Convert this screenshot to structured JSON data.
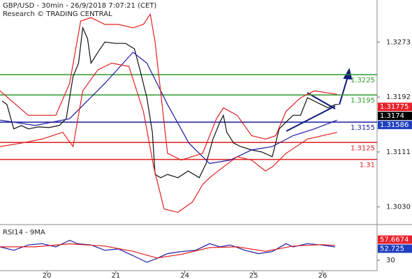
{
  "header": {
    "title": "GBP/USD - 30min - 26/9/2018 7:07:21 (CET)",
    "source": "Research © TRADING CENTRAL"
  },
  "chart_data": [
    {
      "type": "line",
      "xlim": [
        -0.68,
        4.79
      ],
      "ylim": [
        1.3006,
        1.3335
      ],
      "yticks": [
        1.3273,
        1.3192,
        1.3111,
        {
          "value": 1.303,
          "label": "1.3030"
        }
      ],
      "levels": [
        {
          "value": 1.3225,
          "color": "#2e9a2e"
        },
        {
          "value": 1.3195,
          "color": "#2e9a2e"
        },
        {
          "value": 1.3155,
          "color": "#1a1aa6"
        },
        {
          "value": 1.3125,
          "color": "#e02020"
        },
        {
          "value": 1.31,
          "color": "#e02020"
        }
      ],
      "price_labels": [
        {
          "value": 1.31775,
          "color": "#e8202a"
        },
        {
          "value": 1.3174,
          "color": "#000000"
        },
        {
          "value": 1.31586,
          "color": "#1f3fbf"
        }
      ],
      "series": [
        {
          "color": "#111111",
          "x": [
            -0.65,
            -0.58,
            -0.48,
            -0.37,
            -0.27,
            -0.12,
            0.03,
            0.18,
            0.28,
            0.33,
            0.38,
            0.46,
            0.52,
            0.59,
            0.64,
            0.74,
            0.84,
            0.99,
            1.14,
            1.27,
            1.35,
            1.45,
            1.53,
            1.57,
            1.65,
            1.75,
            1.9,
            2.05,
            2.21,
            2.31,
            2.41,
            2.51,
            2.56,
            2.61,
            2.71,
            2.81,
            2.97,
            3.12,
            3.27,
            3.37,
            3.47,
            3.57,
            3.68,
            3.78,
            3.88,
            3.98,
            4.08,
            4.18,
            4.23
          ],
          "values": [
            1.3186,
            1.3181,
            1.3145,
            1.315,
            1.3145,
            1.3148,
            1.3147,
            1.315,
            1.316,
            1.3191,
            1.3222,
            1.3242,
            1.3294,
            1.3278,
            1.3242,
            1.3258,
            1.3273,
            1.3271,
            1.3271,
            1.3263,
            1.3232,
            1.3191,
            1.314,
            1.3078,
            1.3073,
            1.3078,
            1.3073,
            1.3083,
            1.3073,
            1.3094,
            1.313,
            1.3155,
            1.3165,
            1.314,
            1.3124,
            1.3119,
            1.3114,
            1.3111,
            1.3104,
            1.3145,
            1.3155,
            1.3165,
            1.3165,
            1.3191,
            1.3186,
            1.3181,
            1.3176,
            1.3181,
            1.3181
          ]
        },
        {
          "color": "#1a1aa6",
          "x": [
            -0.68,
            -0.17,
            0.33,
            0.84,
            1.25,
            1.45,
            1.75,
            2.06,
            2.36,
            2.66,
            2.97,
            3.27,
            3.57,
            3.88,
            4.21
          ],
          "values": [
            1.3158,
            1.315,
            1.316,
            1.3212,
            1.3258,
            1.3242,
            1.3181,
            1.3124,
            1.3094,
            1.3099,
            1.3114,
            1.3119,
            1.3135,
            1.3145,
            1.3158
          ]
        },
        {
          "color": "#e02020",
          "x": [
            -0.68,
            -0.27,
            0.13,
            0.33,
            0.49,
            0.64,
            0.84,
            1.04,
            1.25,
            1.4,
            1.5,
            1.57,
            1.75,
            1.95,
            2.26,
            2.46,
            2.56,
            2.76,
            2.97,
            3.17,
            3.32,
            3.47,
            3.68,
            3.88,
            4.21
          ],
          "values": [
            1.3201,
            1.3165,
            1.3165,
            1.3212,
            1.3304,
            1.3309,
            1.3299,
            1.3299,
            1.3294,
            1.3299,
            1.3314,
            1.3273,
            1.3109,
            1.3099,
            1.3109,
            1.316,
            1.3176,
            1.3165,
            1.3135,
            1.313,
            1.3135,
            1.3171,
            1.3191,
            1.3201,
            1.3196
          ]
        },
        {
          "color": "#e02020",
          "x": [
            -0.68,
            -0.37,
            -0.07,
            0.23,
            0.38,
            0.52,
            0.74,
            0.94,
            1.19,
            1.4,
            1.55,
            1.7,
            1.9,
            2.11,
            2.26,
            2.36,
            2.56,
            2.76,
            2.97,
            3.17,
            3.27,
            3.47,
            3.78,
            4.21
          ],
          "values": [
            1.3119,
            1.3124,
            1.313,
            1.314,
            1.3119,
            1.3201,
            1.3232,
            1.3242,
            1.3237,
            1.3171,
            1.3089,
            1.3027,
            1.3022,
            1.3037,
            1.3063,
            1.3073,
            1.3089,
            1.3104,
            1.3099,
            1.3083,
            1.3089,
            1.3109,
            1.313,
            1.314
          ]
        }
      ]
    },
    {
      "type": "line",
      "title": "RSI14 - 9MA",
      "xlim": [
        -0.68,
        4.79
      ],
      "xticks": [
        {
          "value": 0,
          "label": "20"
        },
        {
          "value": 1,
          "label": "21"
        },
        {
          "value": 2,
          "label": "24"
        },
        {
          "value": 3,
          "label": "25"
        },
        {
          "value": 4,
          "label": "26"
        }
      ],
      "ylim": [
        18,
        75
      ],
      "yticks": [
        30
      ],
      "price_labels": [
        {
          "value": 57.6674,
          "color": "#e8202a"
        },
        {
          "value": 52.725,
          "color": "#1f3fbf"
        }
      ],
      "series": [
        {
          "color": "#1a1aa6",
          "x": [
            -0.68,
            -0.48,
            -0.27,
            -0.07,
            0.13,
            0.33,
            0.44,
            0.64,
            0.84,
            1.04,
            1.25,
            1.45,
            1.6,
            1.75,
            1.95,
            2.16,
            2.36,
            2.51,
            2.66,
            2.87,
            3.07,
            3.27,
            3.47,
            3.57,
            3.78,
            3.98,
            4.18
          ],
          "values": [
            47.9,
            43.4,
            50.5,
            52.3,
            47.9,
            56.8,
            52.3,
            50.5,
            43.4,
            45.2,
            36.2,
            27.3,
            32.7,
            38.9,
            41.6,
            43.4,
            52.3,
            47.9,
            50.5,
            43.4,
            38.9,
            41.6,
            52.3,
            47.9,
            52.3,
            50.5,
            47.9
          ]
        },
        {
          "color": "#e02020",
          "x": [
            -0.68,
            -0.17,
            0.33,
            0.84,
            1.25,
            1.6,
            1.95,
            2.36,
            2.76,
            3.17,
            3.57,
            3.98,
            4.18
          ],
          "values": [
            48,
            48,
            52,
            49,
            42,
            33,
            38,
            47,
            48,
            42,
            49,
            51,
            50
          ]
        }
      ]
    }
  ]
}
